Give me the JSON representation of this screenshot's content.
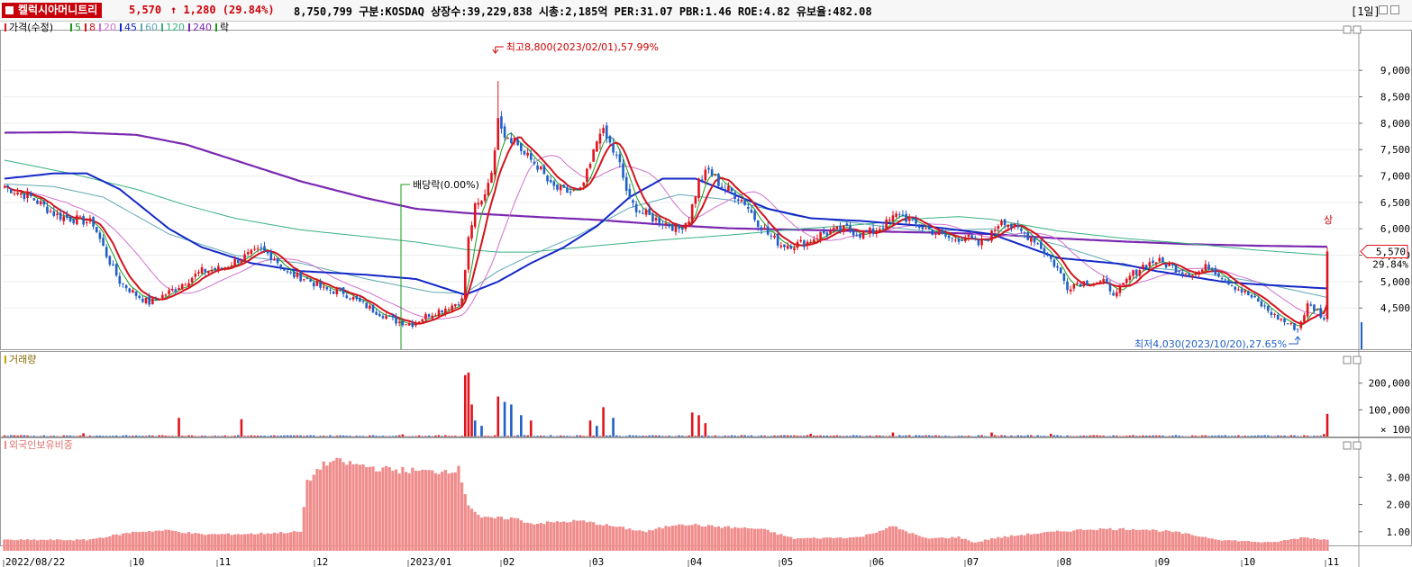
{
  "header": {
    "stock_name": "켈럭시아머니트리",
    "price": "5,570",
    "change": "↑ 1,280 (29.84%)",
    "info": "8,750,799  구분:KOSDAQ 상장수:39,229,838 시총:2,185억 PER:31.07 PBR:1.46 ROE:4.82 유보율:482.08",
    "period": "[1일]"
  },
  "legend": {
    "price_title": "가격(수정)",
    "ma_labels": [
      "5",
      "8",
      "20",
      "45",
      "60",
      "120",
      "240"
    ],
    "ex_label": "락",
    "volume_title": "거래량",
    "foreign_title": "외국인보유비중"
  },
  "colors": {
    "up": "#e0141e",
    "down": "#1f5fc8",
    "ma5": "#1a9a1a",
    "ma8": "#d2141e",
    "ma20": "#d070d0",
    "ma45": "#1428c8",
    "ma60": "#60a8b4",
    "ma120": "#38b080",
    "ma240": "#7a28b0",
    "foreign": "#f08c8c"
  },
  "annotations": {
    "high": "최고8,800(2023/02/01),57.99%",
    "low": "최저4,030(2023/10/20),27.65%",
    "dividend": "배당락(0.00%)",
    "last_label": "5,570",
    "last_pct": "29.84%",
    "marker": "상"
  },
  "chart_data": {
    "type": "candlestick",
    "x_ticks": [
      "2022/08/22",
      "10",
      "11",
      "12",
      "2023/01",
      "02",
      "03",
      "04",
      "05",
      "06",
      "07",
      "08",
      "09",
      "10",
      "11"
    ],
    "price_axis": [
      "9,000",
      "8,500",
      "8,000",
      "7,500",
      "7,000",
      "6,500",
      "6,000",
      "5,500",
      "5,000",
      "4,500"
    ],
    "price_axis_values": [
      9000,
      8500,
      8000,
      7500,
      7000,
      6500,
      6000,
      5500,
      5000,
      4500
    ],
    "price_range": [
      3720,
      9720
    ],
    "volume_axis": [
      "200,000",
      "100,000"
    ],
    "volume_axis_values": [
      200000,
      100000
    ],
    "volume_unit": "× 100",
    "volume_range": [
      0,
      270000
    ],
    "foreign_axis": [
      "3.00",
      "2.00",
      "1.00"
    ],
    "foreign_axis_values": [
      3.0,
      2.0,
      1.0
    ],
    "foreign_range": [
      0.3,
      4.0
    ],
    "close_keypoints": [
      [
        0,
        6800
      ],
      [
        8,
        6600
      ],
      [
        16,
        6250
      ],
      [
        24,
        6150
      ],
      [
        27,
        6100
      ],
      [
        31,
        5500
      ],
      [
        35,
        5000
      ],
      [
        40,
        4750
      ],
      [
        44,
        4600
      ],
      [
        50,
        4800
      ],
      [
        55,
        5000
      ],
      [
        60,
        5200
      ],
      [
        66,
        5250
      ],
      [
        72,
        5450
      ],
      [
        78,
        5600
      ],
      [
        82,
        5450
      ],
      [
        86,
        5150
      ],
      [
        92,
        5050
      ],
      [
        97,
        4850
      ],
      [
        103,
        4800
      ],
      [
        108,
        4600
      ],
      [
        114,
        4400
      ],
      [
        119,
        4250
      ],
      [
        124,
        4200
      ],
      [
        128,
        4350
      ],
      [
        132,
        4450
      ],
      [
        136,
        4550
      ],
      [
        139,
        4650
      ],
      [
        141,
        5800
      ],
      [
        143,
        6400
      ],
      [
        145,
        6500
      ],
      [
        147,
        6900
      ],
      [
        149,
        7400
      ],
      [
        150,
        8200
      ],
      [
        152,
        7800
      ],
      [
        155,
        7700
      ],
      [
        158,
        7400
      ],
      [
        162,
        7200
      ],
      [
        166,
        6800
      ],
      [
        170,
        6700
      ],
      [
        175,
        6700
      ],
      [
        178,
        7200
      ],
      [
        181,
        7900
      ],
      [
        184,
        7600
      ],
      [
        187,
        7200
      ],
      [
        190,
        6500
      ],
      [
        194,
        6300
      ],
      [
        197,
        6200
      ],
      [
        201,
        6100
      ],
      [
        205,
        6000
      ],
      [
        208,
        6200
      ],
      [
        211,
        6900
      ],
      [
        214,
        7100
      ],
      [
        218,
        6800
      ],
      [
        221,
        6700
      ],
      [
        225,
        6500
      ],
      [
        228,
        6200
      ],
      [
        232,
        5900
      ],
      [
        236,
        5700
      ],
      [
        240,
        5700
      ],
      [
        244,
        5750
      ],
      [
        248,
        5900
      ],
      [
        252,
        5950
      ],
      [
        256,
        6000
      ],
      [
        260,
        5900
      ],
      [
        264,
        5950
      ],
      [
        268,
        6100
      ],
      [
        272,
        6300
      ],
      [
        276,
        6100
      ],
      [
        280,
        6000
      ],
      [
        284,
        5900
      ],
      [
        288,
        5800
      ],
      [
        292,
        5850
      ],
      [
        296,
        5700
      ],
      [
        300,
        5900
      ],
      [
        303,
        6200
      ],
      [
        306,
        6050
      ],
      [
        310,
        5900
      ],
      [
        313,
        5800
      ],
      [
        317,
        5500
      ],
      [
        320,
        5250
      ],
      [
        323,
        4900
      ],
      [
        326,
        4980
      ],
      [
        330,
        5000
      ],
      [
        334,
        4980
      ],
      [
        338,
        4750
      ],
      [
        342,
        5100
      ],
      [
        346,
        5300
      ],
      [
        350,
        5400
      ],
      [
        354,
        5300
      ],
      [
        358,
        5200
      ],
      [
        362,
        5150
      ],
      [
        366,
        5300
      ],
      [
        370,
        5100
      ],
      [
        374,
        4900
      ],
      [
        378,
        4750
      ],
      [
        382,
        4550
      ],
      [
        386,
        4350
      ],
      [
        390,
        4200
      ],
      [
        393,
        4100
      ],
      [
        396,
        4550
      ],
      [
        399,
        4450
      ],
      [
        401,
        4290
      ],
      [
        402,
        5570
      ]
    ],
    "ma_keypoints": {
      "ma240": [
        [
          0,
          7820
        ],
        [
          20,
          7830
        ],
        [
          40,
          7780
        ],
        [
          55,
          7600
        ],
        [
          70,
          7300
        ],
        [
          90,
          6900
        ],
        [
          110,
          6580
        ],
        [
          125,
          6380
        ],
        [
          140,
          6300
        ],
        [
          160,
          6230
        ],
        [
          180,
          6170
        ],
        [
          200,
          6080
        ],
        [
          220,
          6010
        ],
        [
          250,
          5970
        ],
        [
          280,
          5930
        ],
        [
          300,
          5900
        ],
        [
          320,
          5820
        ],
        [
          340,
          5760
        ],
        [
          360,
          5710
        ],
        [
          380,
          5680
        ],
        [
          402,
          5660
        ]
      ],
      "ma120": [
        [
          0,
          7300
        ],
        [
          20,
          7050
        ],
        [
          40,
          6750
        ],
        [
          55,
          6450
        ],
        [
          70,
          6200
        ],
        [
          90,
          5980
        ],
        [
          110,
          5850
        ],
        [
          125,
          5750
        ],
        [
          140,
          5610
        ],
        [
          150,
          5560
        ],
        [
          160,
          5560
        ],
        [
          180,
          5680
        ],
        [
          200,
          5790
        ],
        [
          220,
          5880
        ],
        [
          240,
          5990
        ],
        [
          260,
          6080
        ],
        [
          280,
          6200
        ],
        [
          290,
          6230
        ],
        [
          300,
          6180
        ],
        [
          320,
          5960
        ],
        [
          340,
          5820
        ],
        [
          360,
          5720
        ],
        [
          380,
          5600
        ],
        [
          402,
          5500
        ]
      ],
      "ma60": [
        [
          0,
          6850
        ],
        [
          15,
          6800
        ],
        [
          30,
          6600
        ],
        [
          50,
          5900
        ],
        [
          70,
          5500
        ],
        [
          90,
          5350
        ],
        [
          110,
          5050
        ],
        [
          130,
          4800
        ],
        [
          140,
          4780
        ],
        [
          150,
          5200
        ],
        [
          160,
          5500
        ],
        [
          175,
          5900
        ],
        [
          190,
          6400
        ],
        [
          205,
          6650
        ],
        [
          220,
          6550
        ],
        [
          240,
          6250
        ],
        [
          260,
          6100
        ],
        [
          280,
          5950
        ],
        [
          300,
          6000
        ],
        [
          320,
          5700
        ],
        [
          340,
          5300
        ],
        [
          360,
          5200
        ],
        [
          380,
          5000
        ],
        [
          402,
          4700
        ]
      ],
      "ma45": [
        [
          0,
          6950
        ],
        [
          15,
          7050
        ],
        [
          25,
          7050
        ],
        [
          35,
          6750
        ],
        [
          50,
          6000
        ],
        [
          60,
          5650
        ],
        [
          75,
          5350
        ],
        [
          90,
          5200
        ],
        [
          110,
          5130
        ],
        [
          125,
          5050
        ],
        [
          140,
          4750
        ],
        [
          150,
          5000
        ],
        [
          160,
          5350
        ],
        [
          170,
          5650
        ],
        [
          180,
          6050
        ],
        [
          190,
          6600
        ],
        [
          200,
          6950
        ],
        [
          210,
          6950
        ],
        [
          220,
          6700
        ],
        [
          232,
          6380
        ],
        [
          245,
          6200
        ],
        [
          260,
          6150
        ],
        [
          280,
          6050
        ],
        [
          300,
          5900
        ],
        [
          320,
          5450
        ],
        [
          340,
          5330
        ],
        [
          350,
          5200
        ],
        [
          360,
          5100
        ],
        [
          370,
          5000
        ],
        [
          380,
          4950
        ],
        [
          402,
          4870
        ]
      ]
    },
    "foreign_keypoints": [
      [
        0,
        0.7
      ],
      [
        25,
        0.7
      ],
      [
        30,
        0.8
      ],
      [
        40,
        1.0
      ],
      [
        50,
        1.05
      ],
      [
        60,
        0.9
      ],
      [
        75,
        0.92
      ],
      [
        90,
        1.0
      ],
      [
        92,
        2.8
      ],
      [
        96,
        3.4
      ],
      [
        100,
        3.6
      ],
      [
        115,
        3.3
      ],
      [
        130,
        3.2
      ],
      [
        138,
        3.3
      ],
      [
        141,
        2.0
      ],
      [
        145,
        1.5
      ],
      [
        155,
        1.5
      ],
      [
        160,
        1.3
      ],
      [
        175,
        1.4
      ],
      [
        185,
        1.2
      ],
      [
        195,
        1.0
      ],
      [
        205,
        1.3
      ],
      [
        215,
        1.2
      ],
      [
        230,
        1.1
      ],
      [
        240,
        0.75
      ],
      [
        260,
        0.8
      ],
      [
        270,
        1.2
      ],
      [
        280,
        0.75
      ],
      [
        290,
        0.8
      ],
      [
        295,
        0.6
      ],
      [
        300,
        0.75
      ],
      [
        310,
        0.9
      ],
      [
        320,
        1.0
      ],
      [
        330,
        1.1
      ],
      [
        345,
        1.1
      ],
      [
        355,
        1.0
      ],
      [
        370,
        0.7
      ],
      [
        385,
        0.6
      ],
      [
        395,
        0.8
      ],
      [
        402,
        0.7
      ]
    ],
    "volume_spikes": [
      [
        24,
        12000,
        1
      ],
      [
        53,
        70000,
        1
      ],
      [
        72,
        65000,
        1
      ],
      [
        121,
        8000,
        1
      ],
      [
        140,
        230000,
        1
      ],
      [
        141,
        240000,
        1
      ],
      [
        142,
        120000,
        1
      ],
      [
        143,
        60000,
        -1
      ],
      [
        145,
        40000,
        -1
      ],
      [
        150,
        150000,
        1
      ],
      [
        152,
        130000,
        -1
      ],
      [
        154,
        120000,
        -1
      ],
      [
        157,
        80000,
        -1
      ],
      [
        160,
        60000,
        1
      ],
      [
        178,
        60000,
        1
      ],
      [
        180,
        40000,
        -1
      ],
      [
        182,
        110000,
        1
      ],
      [
        185,
        70000,
        -1
      ],
      [
        209,
        90000,
        1
      ],
      [
        211,
        80000,
        1
      ],
      [
        213,
        50000,
        1
      ],
      [
        245,
        10000,
        1
      ],
      [
        270,
        15000,
        1
      ],
      [
        300,
        15000,
        1
      ],
      [
        318,
        10000,
        1
      ],
      [
        401,
        9000,
        1
      ],
      [
        402,
        85000,
        1
      ]
    ]
  }
}
